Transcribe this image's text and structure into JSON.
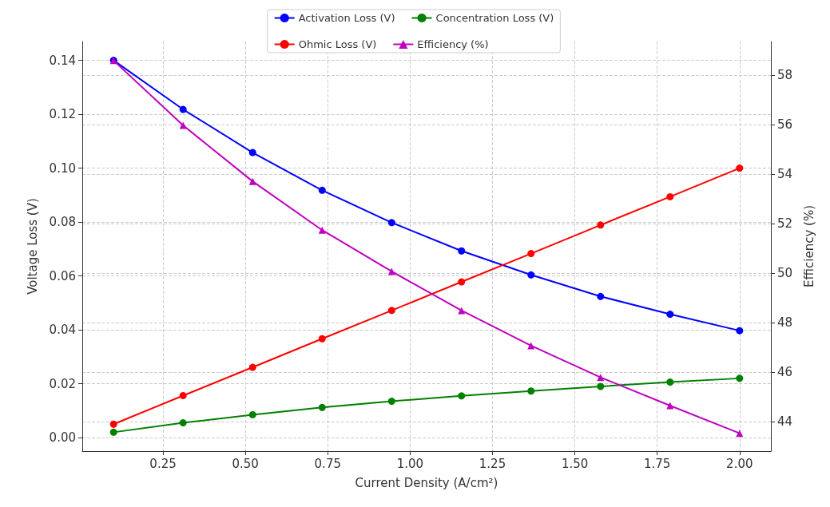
{
  "chart_data": {
    "type": "line",
    "xlabel": "Current Density (A/cm²)",
    "ylabel": "Voltage Loss (V)",
    "y2label": "Efficiency (%)",
    "x": [
      0.1,
      0.311,
      0.522,
      0.733,
      0.944,
      1.156,
      1.367,
      1.578,
      1.789,
      2.0
    ],
    "series": [
      {
        "name": "Activation Loss (V)",
        "color": "#0000ff",
        "values": [
          0.14,
          0.1218,
          0.1058,
          0.0918,
          0.0798,
          0.0693,
          0.0604,
          0.0524,
          0.0458,
          0.0397
        ]
      },
      {
        "name": "Ohmic Loss (V)",
        "color": "#ff0000",
        "values": [
          0.005,
          0.0156,
          0.0261,
          0.0367,
          0.0472,
          0.0578,
          0.0683,
          0.0789,
          0.0894,
          0.1
        ]
      },
      {
        "name": "Concentration Loss (V)",
        "color": "#008000",
        "values": [
          0.002,
          0.0055,
          0.0085,
          0.0112,
          0.0135,
          0.0155,
          0.0173,
          0.019,
          0.0206,
          0.022
        ]
      },
      {
        "name": "Efficiency (%)",
        "color": "#bf00bf",
        "axis": "y2",
        "marker": "triangle",
        "values": [
          58.58,
          55.96,
          53.7,
          51.73,
          50.06,
          48.48,
          47.06,
          45.78,
          44.64,
          43.52
        ]
      }
    ],
    "xlim": [
      0.005,
      2.095
    ],
    "xticks": [
      0.25,
      {
        "value": 0.5,
        "label": "0.50"
      },
      0.75,
      {
        "value": 1.0,
        "label": "1.00"
      },
      1.25,
      {
        "value": 1.5,
        "label": "1.50"
      },
      1.75,
      {
        "value": 2.0,
        "label": "2.00"
      }
    ],
    "ylim": [
      -0.005,
      0.147
    ],
    "yticks": [
      {
        "value": 0.0,
        "label": "0.00"
      },
      0.02,
      0.04,
      0.06,
      0.08,
      {
        "value": 0.1,
        "label": "0.10"
      },
      0.12,
      0.14
    ],
    "y2lim": [
      42.8,
      59.35
    ],
    "y2ticks": [
      44,
      46,
      48,
      50,
      52,
      54,
      56,
      58
    ],
    "grid": true,
    "legend": "top",
    "marker": "circle",
    "line_style": "solid"
  }
}
